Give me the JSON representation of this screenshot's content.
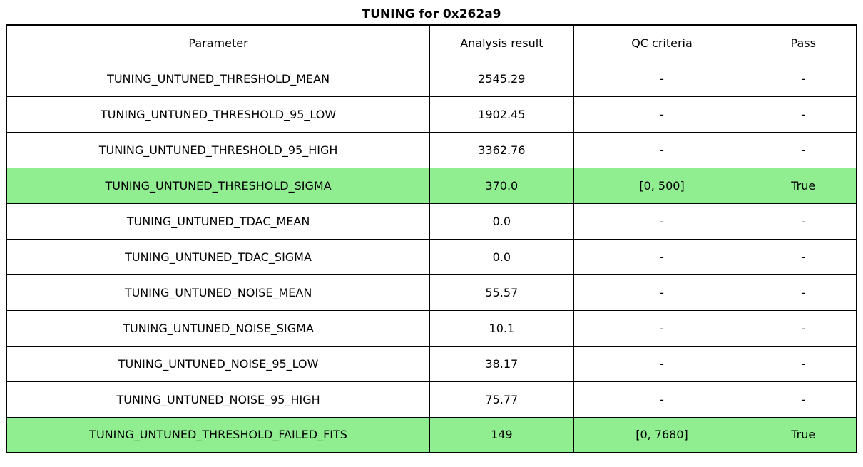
{
  "chart_data": {
    "type": "table",
    "title": "TUNING for 0x262a9",
    "columns": [
      "Parameter",
      "Analysis result",
      "QC criteria",
      "Pass"
    ],
    "rows": [
      {
        "parameter": "TUNING_UNTUNED_THRESHOLD_MEAN",
        "analysis_result": "2545.29",
        "qc_criteria": "-",
        "pass": "-",
        "highlight": false
      },
      {
        "parameter": "TUNING_UNTUNED_THRESHOLD_95_LOW",
        "analysis_result": "1902.45",
        "qc_criteria": "-",
        "pass": "-",
        "highlight": false
      },
      {
        "parameter": "TUNING_UNTUNED_THRESHOLD_95_HIGH",
        "analysis_result": "3362.76",
        "qc_criteria": "-",
        "pass": "-",
        "highlight": false
      },
      {
        "parameter": "TUNING_UNTUNED_THRESHOLD_SIGMA",
        "analysis_result": "370.0",
        "qc_criteria": "[0, 500]",
        "pass": "True",
        "highlight": true
      },
      {
        "parameter": "TUNING_UNTUNED_TDAC_MEAN",
        "analysis_result": "0.0",
        "qc_criteria": "-",
        "pass": "-",
        "highlight": false
      },
      {
        "parameter": "TUNING_UNTUNED_TDAC_SIGMA",
        "analysis_result": "0.0",
        "qc_criteria": "-",
        "pass": "-",
        "highlight": false
      },
      {
        "parameter": "TUNING_UNTUNED_NOISE_MEAN",
        "analysis_result": "55.57",
        "qc_criteria": "-",
        "pass": "-",
        "highlight": false
      },
      {
        "parameter": "TUNING_UNTUNED_NOISE_SIGMA",
        "analysis_result": "10.1",
        "qc_criteria": "-",
        "pass": "-",
        "highlight": false
      },
      {
        "parameter": "TUNING_UNTUNED_NOISE_95_LOW",
        "analysis_result": "38.17",
        "qc_criteria": "-",
        "pass": "-",
        "highlight": false
      },
      {
        "parameter": "TUNING_UNTUNED_NOISE_95_HIGH",
        "analysis_result": "75.77",
        "qc_criteria": "-",
        "pass": "-",
        "highlight": false
      },
      {
        "parameter": "TUNING_UNTUNED_THRESHOLD_FAILED_FITS",
        "analysis_result": "149",
        "qc_criteria": "[0, 7680]",
        "pass": "True",
        "highlight": true
      }
    ],
    "highlighted_row_indices": [
      3,
      10
    ],
    "legend_position": "none",
    "grid": "full-borders"
  },
  "colors": {
    "highlight_green": "#90EE90",
    "border": "#000000",
    "text": "#000000",
    "background": "#FFFFFF"
  }
}
